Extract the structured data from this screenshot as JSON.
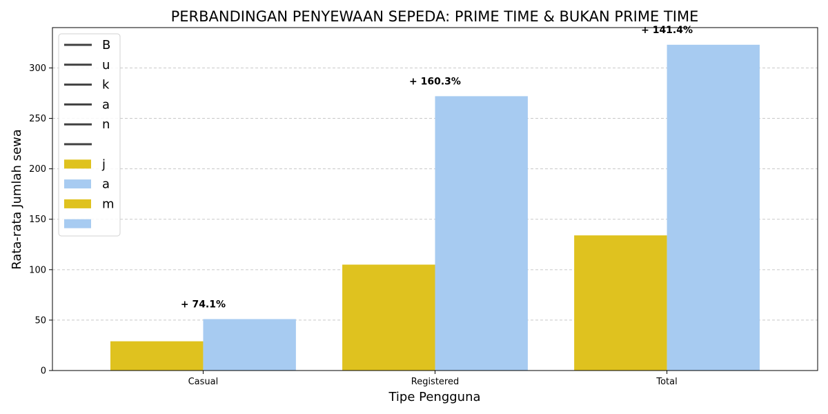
{
  "chart_data": {
    "type": "bar",
    "title": "PERBANDINGAN PENYEWAAN SEPEDA: PRIME TIME & BUKAN PRIME TIME",
    "xlabel": "Tipe Pengguna",
    "ylabel": "Rata-rata Jumlah sewa",
    "categories": [
      "Casual",
      "Registered",
      "Total"
    ],
    "ylim": [
      0,
      340
    ],
    "yticks": [
      0,
      50,
      100,
      150,
      200,
      250,
      300
    ],
    "grid": "y-dashed",
    "legend_position": "top-left",
    "series": [
      {
        "values": [
          29,
          105,
          134
        ],
        "color": "#DFC21F"
      },
      {
        "values": [
          51,
          272,
          323
        ],
        "color": "#A7CBF1"
      }
    ],
    "annotations": [
      "+ 74.1%",
      "+ 160.3%",
      "+ 141.4%"
    ],
    "legend": {
      "line_entries": [
        "B",
        "u",
        "k",
        "a",
        "n",
        ""
      ],
      "line_color": "#404040",
      "patch_entries": [
        {
          "label": "j",
          "color": "#DFC21F"
        },
        {
          "label": "a",
          "color": "#A7CBF1"
        },
        {
          "label": "m",
          "color": "#DFC21F"
        },
        {
          "label": "",
          "color": "#A7CBF1"
        }
      ]
    }
  }
}
